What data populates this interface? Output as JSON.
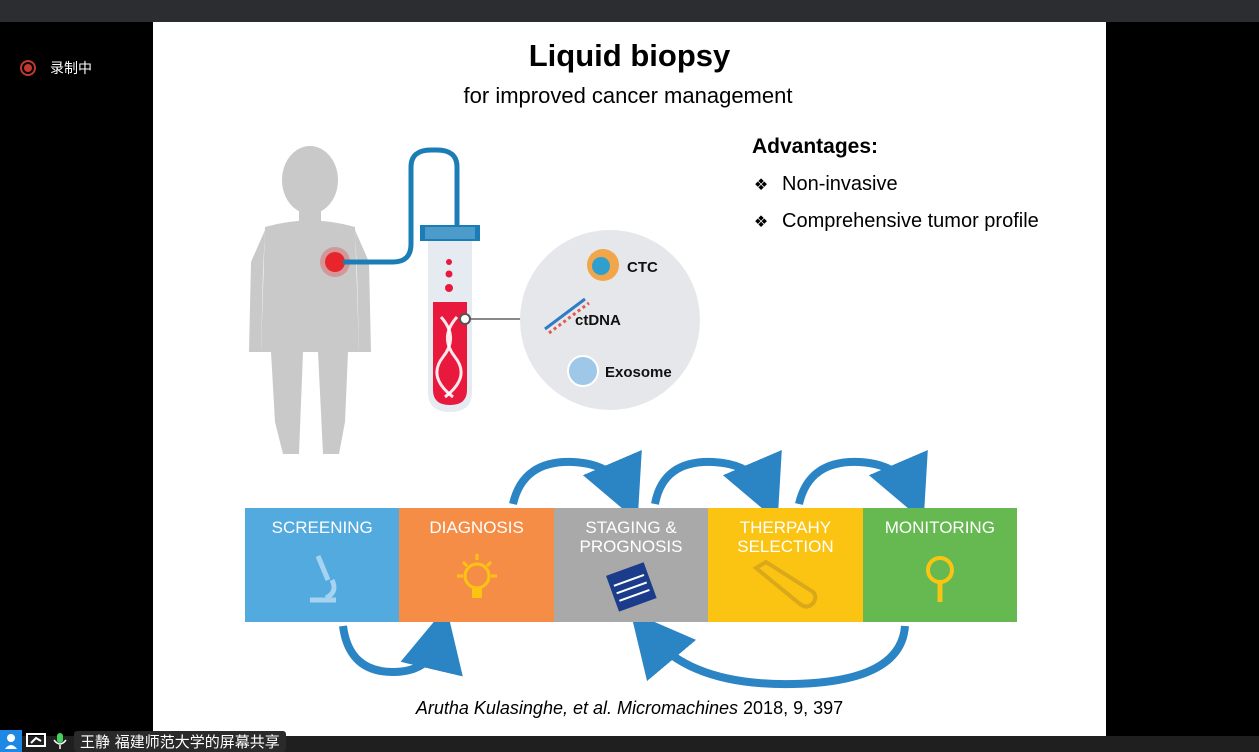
{
  "recording": {
    "label": "录制中"
  },
  "slide": {
    "title": "Liquid biopsy",
    "subtitle": "for improved cancer management",
    "advantages": {
      "heading": "Advantages:",
      "items": [
        "Non-invasive",
        "Comprehensive tumor profile"
      ]
    },
    "components": [
      "CTC",
      "ctDNA",
      "Exosome"
    ],
    "stages": [
      {
        "label": "SCREENING",
        "color": "#52aadf",
        "icon": "microscope-icon"
      },
      {
        "label": "DIAGNOSIS",
        "color": "#f68d46",
        "icon": "lightbulb-icon"
      },
      {
        "label": "STAGING & PROGNOSIS",
        "color": "#a9a9a9",
        "icon": "notepad-icon"
      },
      {
        "label": "THERPAHY SELECTION",
        "color": "#fbc412",
        "icon": "test-tube-icon"
      },
      {
        "label": "MONITORING",
        "color": "#66b950",
        "icon": "magnifier-icon"
      }
    ],
    "citation": {
      "authors": "Arutha Kulasinghe, et al. Micromachines",
      "ref": " 2018, 9, 397"
    }
  },
  "taskbar": {
    "share_label": "王静 福建师范大学的屏幕共享"
  }
}
